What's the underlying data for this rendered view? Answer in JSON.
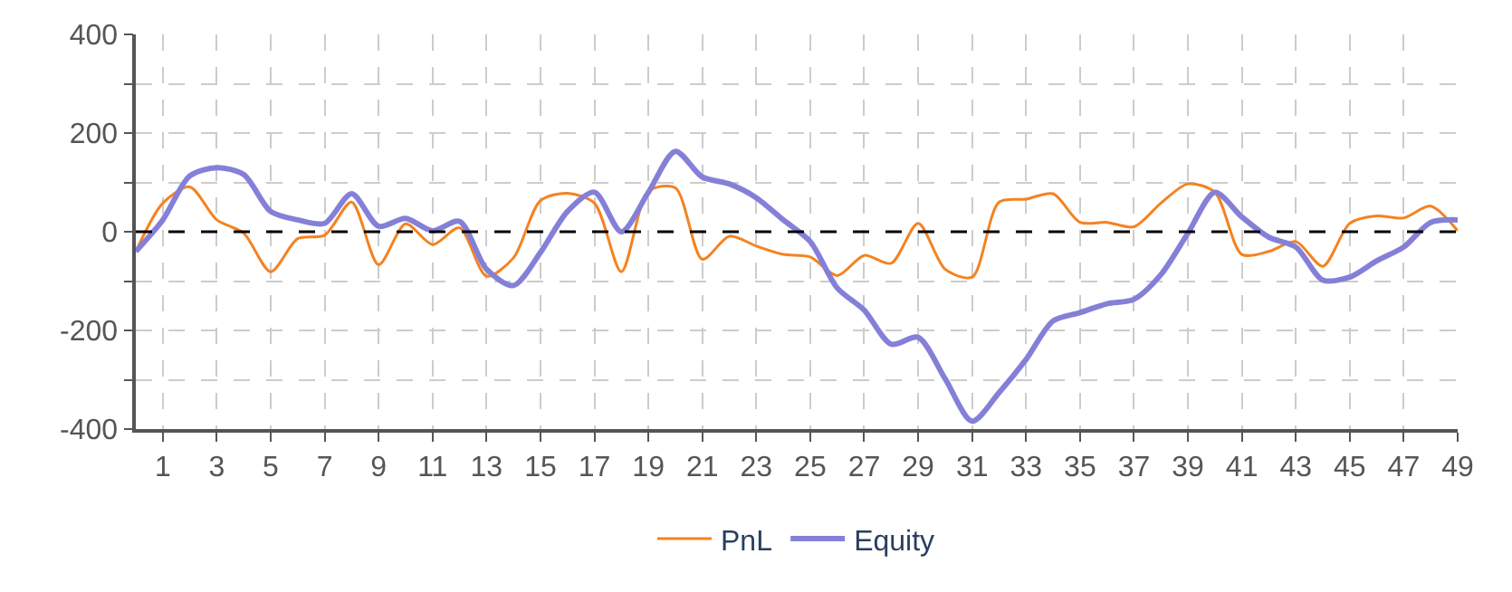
{
  "chart_data": {
    "type": "line",
    "x": [
      0,
      1,
      2,
      3,
      4,
      5,
      6,
      7,
      8,
      9,
      10,
      11,
      12,
      13,
      14,
      15,
      16,
      17,
      18,
      19,
      20,
      21,
      22,
      23,
      24,
      25,
      26,
      27,
      28,
      29,
      30,
      31,
      32,
      33,
      34,
      35,
      36,
      37,
      38,
      39,
      40,
      41,
      42,
      43,
      44,
      45,
      46,
      47,
      48,
      49
    ],
    "series": [
      {
        "name": "PnL",
        "color": "#f58220",
        "values": [
          -40,
          58,
          91,
          24,
          -3,
          -81,
          -14,
          -7,
          60,
          -67,
          16,
          -26,
          8,
          -90,
          -53,
          63,
          78,
          58,
          -81,
          82,
          89,
          -56,
          -9,
          -29,
          -46,
          -51,
          -89,
          -48,
          -64,
          17,
          -76,
          -92,
          60,
          66,
          77,
          19,
          19,
          10,
          58,
          97,
          80,
          -46,
          -40,
          -20,
          -70,
          17,
          32,
          28,
          52,
          2
        ]
      },
      {
        "name": "Equity",
        "color": "#8480d8",
        "values": [
          -40,
          24,
          113,
          130,
          116,
          41,
          24,
          17,
          77,
          11,
          27,
          2,
          21,
          -76,
          -109,
          -42,
          41,
          80,
          0,
          80,
          163,
          111,
          97,
          69,
          24,
          -20,
          -114,
          -159,
          -228,
          -214,
          -298,
          -384,
          -326,
          -259,
          -181,
          -164,
          -146,
          -137,
          -87,
          -3,
          80,
          30,
          -11,
          -31,
          -98,
          -92,
          -59,
          -31,
          19,
          24
        ]
      }
    ],
    "xlim": [
      0,
      49
    ],
    "xticks": [
      1,
      3,
      5,
      7,
      9,
      11,
      13,
      15,
      17,
      19,
      21,
      23,
      25,
      27,
      29,
      31,
      33,
      35,
      37,
      39,
      41,
      43,
      45,
      47,
      49
    ],
    "ylim": [
      -400,
      400
    ],
    "yticks": [
      -400,
      {
        "value": -300,
        "label": null
      },
      -200,
      {
        "value": -100,
        "label": null
      },
      0,
      {
        "value": 100,
        "label": null
      },
      200,
      {
        "value": 300,
        "label": null
      },
      400
    ],
    "ref_lines": [
      {
        "axis": "y",
        "value": 0,
        "color": "#000000",
        "line_style": "dashed"
      }
    ],
    "grid": true,
    "legend": "bottom",
    "marker": "none",
    "line_style": "solid"
  }
}
